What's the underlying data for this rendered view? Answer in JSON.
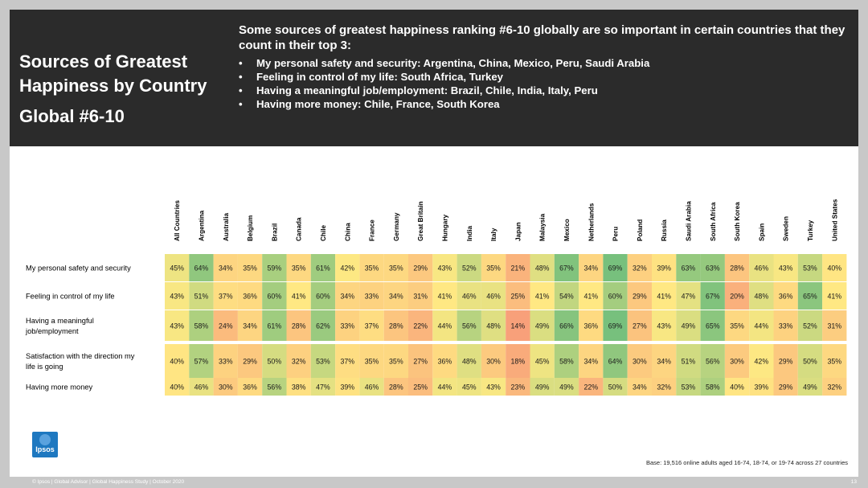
{
  "header": {
    "title_line1": "Sources of Greatest",
    "title_line2": "Happiness by Country",
    "subtitle": "Global #6-10",
    "headline": "Some sources of greatest happiness ranking #6-10 globally are so important in certain countries that they count in their top 3:",
    "bullets": [
      "My personal safety and security: Argentina, China, Mexico, Peru, Saudi Arabia",
      "Feeling in control of my life: South Africa, Turkey",
      "Having a meaningful job/employment: Brazil, Chile, India, Italy, Peru",
      "Having more money: Chile, France, South Korea"
    ]
  },
  "chart_data": {
    "type": "heatmap",
    "columns": [
      "All Countries",
      "Argentina",
      "Australia",
      "Belgium",
      "Brazil",
      "Canada",
      "Chile",
      "China",
      "France",
      "Germany",
      "Great Britain",
      "Hungary",
      "India",
      "Italy",
      "Japan",
      "Malaysia",
      "Mexico",
      "Netherlands",
      "Peru",
      "Poland",
      "Russia",
      "Saudi Arabia",
      "South Africa",
      "South Korea",
      "Spain",
      "Sweden",
      "Turkey",
      "United States"
    ],
    "rows": [
      {
        "label": [
          "My personal safety and security"
        ],
        "values": [
          45,
          64,
          34,
          35,
          59,
          35,
          61,
          42,
          35,
          35,
          29,
          43,
          52,
          35,
          21,
          48,
          67,
          34,
          69,
          32,
          39,
          63,
          63,
          28,
          46,
          43,
          53,
          40
        ]
      },
      {
        "label": [
          "Feeling in control of my life"
        ],
        "values": [
          43,
          51,
          37,
          36,
          60,
          41,
          60,
          34,
          33,
          34,
          31,
          41,
          46,
          46,
          25,
          41,
          54,
          41,
          60,
          29,
          41,
          47,
          67,
          20,
          48,
          36,
          65,
          41
        ]
      },
      {
        "label": [
          "Having a meaningful",
          "job/employment"
        ],
        "values": [
          43,
          58,
          24,
          34,
          61,
          28,
          62,
          33,
          37,
          28,
          22,
          44,
          56,
          48,
          14,
          49,
          66,
          36,
          69,
          27,
          43,
          49,
          65,
          35,
          44,
          33,
          52,
          31
        ]
      },
      {
        "label": [
          "Satisfaction with the direction my",
          "life is going"
        ],
        "values": [
          40,
          57,
          33,
          29,
          50,
          32,
          53,
          37,
          35,
          35,
          27,
          36,
          48,
          30,
          18,
          45,
          58,
          34,
          64,
          30,
          34,
          51,
          56,
          30,
          42,
          29,
          50,
          35
        ]
      },
      {
        "label": [
          "Having more money"
        ],
        "values": [
          40,
          46,
          30,
          36,
          56,
          38,
          47,
          39,
          46,
          28,
          25,
          44,
          45,
          43,
          23,
          49,
          49,
          22,
          50,
          34,
          32,
          53,
          58,
          40,
          39,
          29,
          49,
          32
        ]
      }
    ],
    "unit": "%",
    "color_scale": {
      "low": "#f8a07a",
      "mid": "#ffe983",
      "high": "#77c07d"
    }
  },
  "logo_text": "Ipsos",
  "base_note": "Base: 19,516 online adults aged 16-74, 18-74, or 19-74 across 27 countries",
  "footer": "© Ipsos | Global Advisor | Global Happiness Study | October 2020",
  "page_number": "13"
}
